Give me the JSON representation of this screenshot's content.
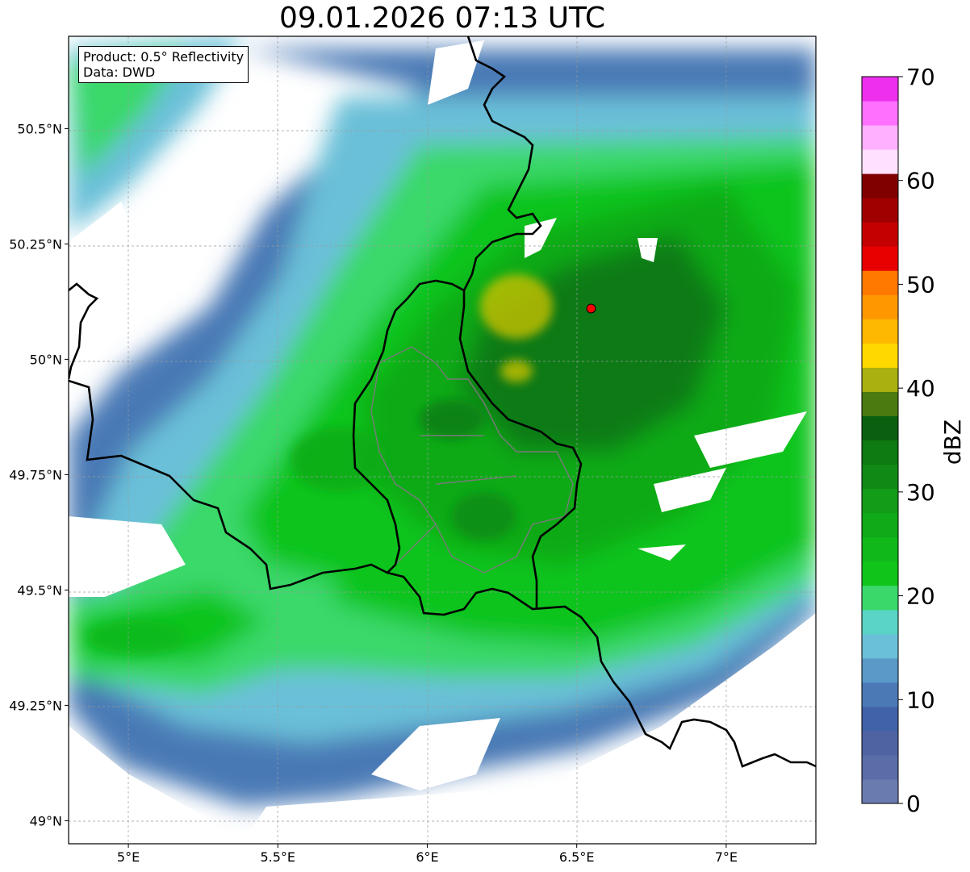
{
  "title": "09.01.2026 07:13 UTC",
  "info": {
    "product": "Product: 0.5° Reflectivity",
    "data_source": "Data: DWD"
  },
  "map": {
    "lon_range": [
      4.8,
      7.3
    ],
    "lat_range": [
      48.95,
      50.7
    ],
    "lon_ticks": [
      "5°E",
      "5.5°E",
      "6°E",
      "6.5°E",
      "7°E"
    ],
    "lat_ticks": [
      "49°N",
      "49.25°N",
      "49.5°N",
      "49.75°N",
      "50°N",
      "50.25°N",
      "50.5°N"
    ],
    "radar_site": {
      "lon": 6.548,
      "lat": 50.11,
      "color": "#ff0000"
    }
  },
  "colorbar": {
    "label": "dBZ",
    "min": 0,
    "max": 70,
    "ticks": [
      "0",
      "10",
      "20",
      "30",
      "40",
      "50",
      "60",
      "70"
    ],
    "colors": [
      "#6a7bb0",
      "#5a6da8",
      "#4f63a3",
      "#4262a7",
      "#4a79b5",
      "#5a99c8",
      "#6ac0d8",
      "#5ad4c4",
      "#3ad86a",
      "#10c41a",
      "#10b81a",
      "#10aa18",
      "#139c18",
      "#108a14",
      "#0e7a12",
      "#0a6010",
      "#4a7a10",
      "#aab010",
      "#ffd800",
      "#ffb800",
      "#ff9800",
      "#ff7800",
      "#e80000",
      "#c40000",
      "#a00000",
      "#800000",
      "#ffe0ff",
      "#ffb0ff",
      "#ff70ff",
      "#ee30ee"
    ]
  }
}
